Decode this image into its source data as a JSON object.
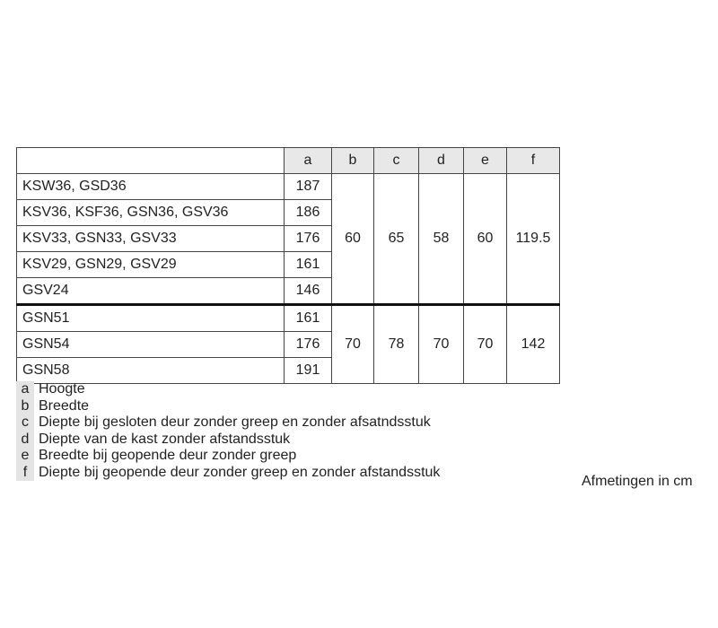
{
  "table": {
    "headers": [
      "",
      "a",
      "b",
      "c",
      "d",
      "e",
      "f"
    ],
    "groups": [
      {
        "rows": [
          {
            "model": "KSW36, GSD36",
            "a": "187"
          },
          {
            "model": "KSV36, KSF36, GSN36, GSV36",
            "a": "186"
          },
          {
            "model": "KSV33, GSN33, GSV33",
            "a": "176"
          },
          {
            "model": "KSV29, GSN29, GSV29",
            "a": "161"
          },
          {
            "model": "GSV24",
            "a": "146"
          }
        ],
        "b": "60",
        "c": "65",
        "d": "58",
        "e": "60",
        "f": "119.5"
      },
      {
        "rows": [
          {
            "model": "GSN51",
            "a": "161"
          },
          {
            "model": "GSN54",
            "a": "176"
          },
          {
            "model": "GSN58",
            "a": "191"
          }
        ],
        "b": "70",
        "c": "78",
        "d": "70",
        "e": "70",
        "f": "142"
      }
    ]
  },
  "legend": [
    {
      "key": "a",
      "text": "Hoogte"
    },
    {
      "key": "b",
      "text": "Breedte"
    },
    {
      "key": "c",
      "text": "Diepte bij gesloten deur zonder greep en zonder afsatndsstuk"
    },
    {
      "key": "d",
      "text": "Diepte van de kast zonder afstandsstuk"
    },
    {
      "key": "e",
      "text": "Breedte bij geopende deur zonder greep"
    },
    {
      "key": "f",
      "text": "Diepte bij geopende deur zonder greep en zonder afstandsstuk"
    }
  ],
  "units_note": "Afmetingen in cm"
}
